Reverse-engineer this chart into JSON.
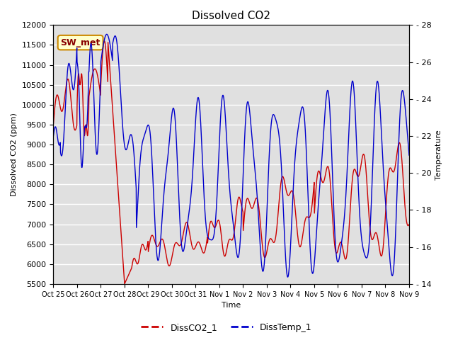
{
  "title": "Dissolved CO2",
  "ylabel_left": "Dissolved CO2 (ppm)",
  "ylabel_right": "Temperature",
  "xlabel": "Time",
  "ylim_left": [
    5500,
    12000
  ],
  "ylim_right": [
    14,
    28
  ],
  "xtick_labels": [
    "Oct 25",
    "Oct 26",
    "Oct 27",
    "Oct 28",
    "Oct 29",
    "Oct 30",
    "Oct 31",
    "Nov 1",
    "Nov 2",
    "Nov 3",
    "Nov 4",
    "Nov 5",
    "Nov 6",
    "Nov 7",
    "Nov 8",
    "Nov 9"
  ],
  "yticks_left": [
    5500,
    6000,
    6500,
    7000,
    7500,
    8000,
    8500,
    9000,
    9500,
    10000,
    10500,
    11000,
    11500,
    12000
  ],
  "yticks_right": [
    14,
    16,
    18,
    20,
    22,
    24,
    26,
    28
  ],
  "line1_color": "#cc0000",
  "line2_color": "#0000cc",
  "line1_label": "DissCO2_1",
  "line2_label": "DissTemp_1",
  "annotation_text": "SW_met",
  "annotation_bg": "#ffffcc",
  "annotation_border": "#cc8800",
  "background_color": "#e0e0e0",
  "title_fontsize": 11,
  "label_fontsize": 8,
  "tick_fontsize": 8
}
